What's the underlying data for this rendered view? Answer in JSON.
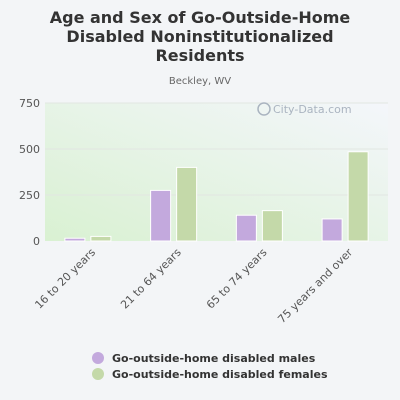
{
  "chart_data": {
    "type": "bar",
    "title": "Age and Sex of Go-Outside-Home Disabled Noninstitutionalized Residents",
    "subtitle": "Beckley, WV",
    "watermark": "City-Data.com",
    "categories": [
      "16 to 20 years",
      "21 to 64 years",
      "65 to 74 years",
      "75 years and over"
    ],
    "series": [
      {
        "name": "Go-outside-home disabled males",
        "values": [
          15,
          275,
          140,
          120
        ],
        "color": "#c3a9dd"
      },
      {
        "name": "Go-outside-home disabled females",
        "values": [
          25,
          400,
          165,
          485
        ],
        "color": "#c4d9a9"
      }
    ],
    "yticks": [
      0,
      250,
      500,
      750
    ],
    "ylim": [
      0,
      750
    ],
    "grid": true,
    "legend_position": "bottom"
  }
}
